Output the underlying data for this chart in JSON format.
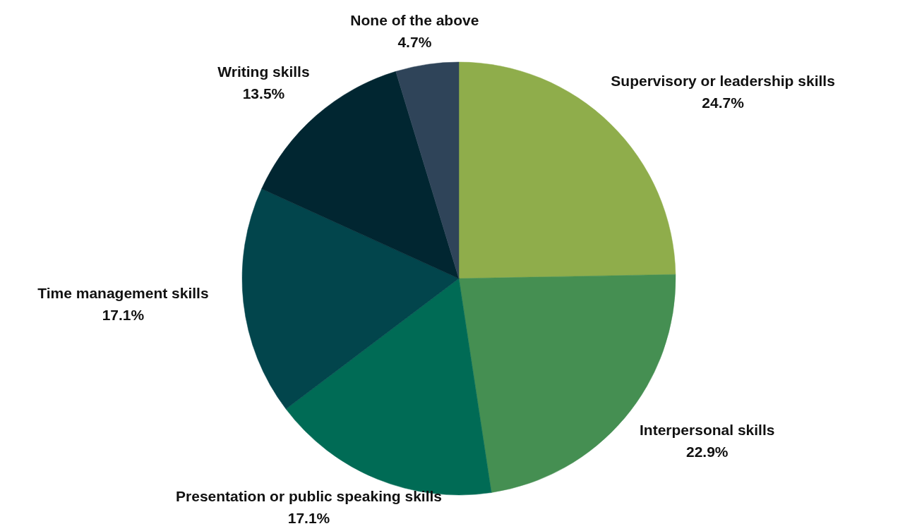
{
  "chart_data": {
    "type": "pie",
    "categories": [
      "Supervisory or leadership skills",
      "Interpersonal skills",
      "Presentation or public speaking skills",
      "Time management skills",
      "Writing skills",
      "None of the above"
    ],
    "values": [
      24.7,
      22.9,
      17.1,
      17.1,
      13.5,
      4.7
    ],
    "colors": [
      "#8fad4b",
      "#458f52",
      "#006b55",
      "#02454c",
      "#012631",
      "#2f4459"
    ],
    "value_labels": [
      "24.7%",
      "22.9%",
      "17.1%",
      "17.1%",
      "13.5%",
      "4.7%"
    ]
  }
}
